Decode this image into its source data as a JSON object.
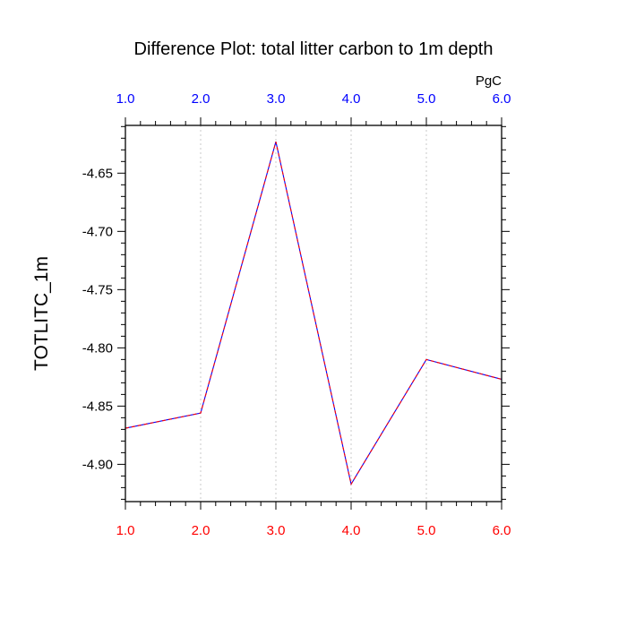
{
  "chart_data": {
    "type": "line",
    "title": "Difference Plot: total litter carbon to 1m depth",
    "units": "PgC",
    "ylabel": "TOTLITC_1m",
    "xlabel": "",
    "x": [
      1.0,
      2.0,
      3.0,
      4.0,
      5.0,
      6.0
    ],
    "xlim": [
      1.0,
      6.0
    ],
    "ylim": [
      -4.932,
      -4.609
    ],
    "x_tick_labels": [
      "1.0",
      "2.0",
      "3.0",
      "4.0",
      "5.0",
      "6.0"
    ],
    "y_ticks": [
      -4.65,
      -4.7,
      -4.75,
      -4.8,
      -4.85,
      -4.9
    ],
    "y_tick_labels": [
      "-4.65",
      "-4.70",
      "-4.75",
      "-4.80",
      "-4.85",
      "-4.90"
    ],
    "y_minor_step": 0.01,
    "x_minor_step": 0.2,
    "grid": "vertical dotted at major x ticks",
    "series": [
      {
        "values": [
          -4.869,
          -4.856,
          -4.623,
          -4.917,
          -4.81,
          -4.827
        ],
        "color_solid": "#0000ff",
        "color_dash": "#ff0000"
      }
    ],
    "colors": {
      "top_ticks": "#0000ff",
      "bottom_ticks": "#ff0000",
      "grid": "#c8c8c8",
      "frame": "#000000"
    }
  }
}
